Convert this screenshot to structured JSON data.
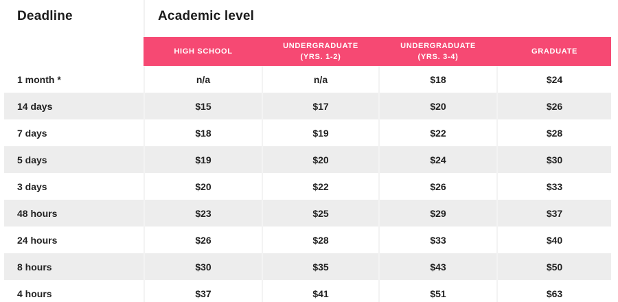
{
  "title_row": {
    "deadline": "Deadline",
    "academic_level": "Academic level"
  },
  "columns": [
    "HIGH SCHOOL",
    "UNDERGRADUATE\n(YRS. 1-2)",
    "UNDERGRADUATE\n(YRS. 3-4)",
    "GRADUATE"
  ],
  "rows": [
    {
      "deadline": "1 month *",
      "prices": [
        "n/a",
        "n/a",
        "$18",
        "$24"
      ]
    },
    {
      "deadline": "14 days",
      "prices": [
        "$15",
        "$17",
        "$20",
        "$26"
      ]
    },
    {
      "deadline": "7 days",
      "prices": [
        "$18",
        "$19",
        "$22",
        "$28"
      ]
    },
    {
      "deadline": "5 days",
      "prices": [
        "$19",
        "$20",
        "$24",
        "$30"
      ]
    },
    {
      "deadline": "3 days",
      "prices": [
        "$20",
        "$22",
        "$26",
        "$33"
      ]
    },
    {
      "deadline": "48 hours",
      "prices": [
        "$23",
        "$25",
        "$29",
        "$37"
      ]
    },
    {
      "deadline": "24 hours",
      "prices": [
        "$26",
        "$28",
        "$33",
        "$40"
      ]
    },
    {
      "deadline": "8 hours",
      "prices": [
        "$30",
        "$35",
        "$43",
        "$50"
      ]
    },
    {
      "deadline": "4 hours",
      "prices": [
        "$37",
        "$41",
        "$51",
        "$63"
      ]
    }
  ],
  "colors": {
    "header_pink": "#f64973",
    "stripe_gray": "#ededed",
    "separator": "#f3f3f3",
    "text_dark": "#222222",
    "header_text": "#ffffff"
  }
}
